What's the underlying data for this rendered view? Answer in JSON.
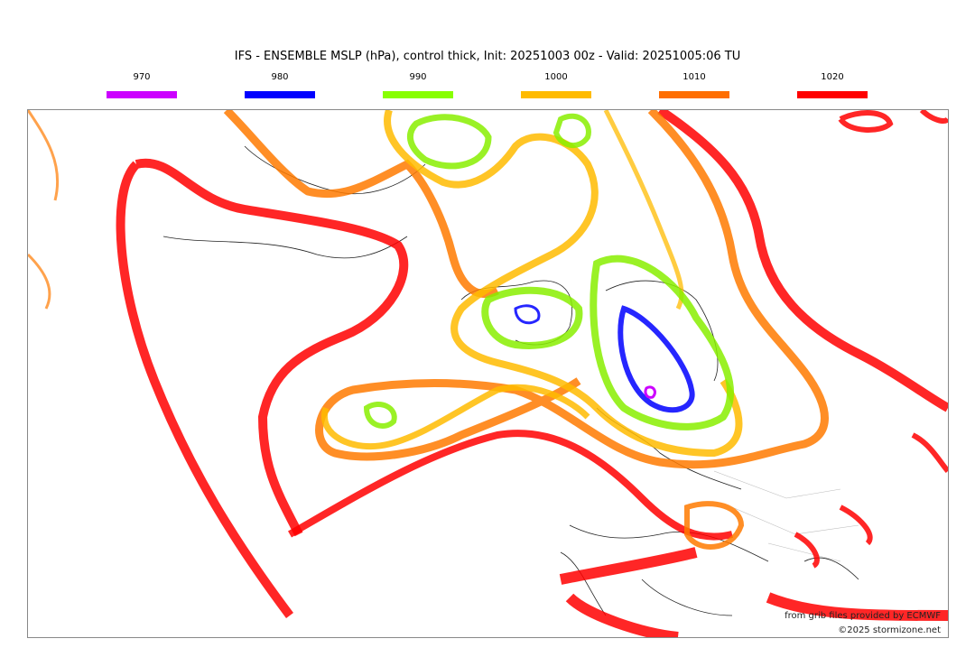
{
  "title": "IFS - ENSEMBLE MSLP (hPa), control thick, Init: 20251003 00z - Valid: 20251005:06 TU",
  "legend": [
    {
      "label": "970",
      "color": "#cc00ff"
    },
    {
      "label": "980",
      "color": "#0000ff"
    },
    {
      "label": "990",
      "color": "#88ff00"
    },
    {
      "label": "1000",
      "color": "#ffbb00"
    },
    {
      "label": "1010",
      "color": "#ff6e00"
    },
    {
      "label": "1020",
      "color": "#ff0000"
    }
  ],
  "credits": {
    "source": "from grib files provided by ECMWF",
    "copyright": "©2025 stormizone.net"
  }
}
